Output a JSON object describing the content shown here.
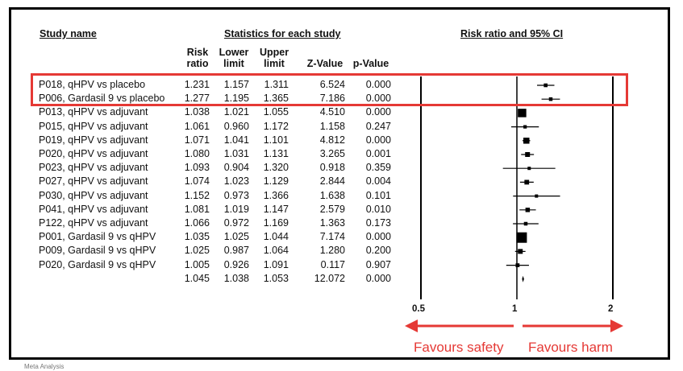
{
  "headers": {
    "study_name": "Study name",
    "statistics": "Statistics for each study",
    "plot_title": "Risk ratio and 95% CI"
  },
  "columns": [
    {
      "line1": "Risk",
      "line2": "ratio"
    },
    {
      "line1": "Lower",
      "line2": "limit"
    },
    {
      "line1": "Upper",
      "line2": "limit"
    },
    {
      "line1": "",
      "line2": "Z-Value"
    },
    {
      "line1": "",
      "line2": "p-Value"
    }
  ],
  "axis_labels": [
    "0.5",
    "1",
    "2"
  ],
  "favours_left": "Favours safety",
  "favours_right": "Favours harm",
  "footnote": "Meta Analysis",
  "colors": {
    "highlight": "#e53935",
    "text": "#111111"
  },
  "chart_data": {
    "type": "forest",
    "x_scale": "log",
    "xlim": [
      0.5,
      2
    ],
    "reference_line": 1,
    "rows": [
      {
        "study": "P018, qHPV vs placebo",
        "rr": "1.231",
        "lower": "1.157",
        "upper": "1.311",
        "z": "6.524",
        "p": "0.000",
        "weight": 0.16,
        "highlight": true
      },
      {
        "study": "P006, Gardasil 9 vs placebo",
        "rr": "1.277",
        "lower": "1.195",
        "upper": "1.365",
        "z": "7.186",
        "p": "0.000",
        "weight": 0.15,
        "highlight": true
      },
      {
        "study": "P013, qHPV vs adjuvant",
        "rr": "1.038",
        "lower": "1.021",
        "upper": "1.055",
        "z": "4.510",
        "p": "0.000",
        "weight": 0.75
      },
      {
        "study": "P015, qHPV vs adjuvant",
        "rr": "1.061",
        "lower": "0.960",
        "upper": "1.172",
        "z": "1.158",
        "p": "0.247",
        "weight": 0.12
      },
      {
        "study": "P019, qHPV vs adjuvant",
        "rr": "1.071",
        "lower": "1.041",
        "upper": "1.101",
        "z": "4.812",
        "p": "0.000",
        "weight": 0.45
      },
      {
        "study": "P020, qHPV vs adjuvant",
        "rr": "1.080",
        "lower": "1.031",
        "upper": "1.131",
        "z": "3.265",
        "p": "0.001",
        "weight": 0.3
      },
      {
        "study": "P023, qHPV vs adjuvant",
        "rr": "1.093",
        "lower": "0.904",
        "upper": "1.320",
        "z": "0.918",
        "p": "0.359",
        "weight": 0.1
      },
      {
        "study": "P027, qHPV vs adjuvant",
        "rr": "1.074",
        "lower": "1.023",
        "upper": "1.129",
        "z": "2.844",
        "p": "0.004",
        "weight": 0.28
      },
      {
        "study": "P030, qHPV vs adjuvant",
        "rr": "1.152",
        "lower": "0.973",
        "upper": "1.366",
        "z": "1.638",
        "p": "0.101",
        "weight": 0.1
      },
      {
        "study": "P041, qHPV vs adjuvant",
        "rr": "1.081",
        "lower": "1.019",
        "upper": "1.147",
        "z": "2.579",
        "p": "0.010",
        "weight": 0.25
      },
      {
        "study": "P122, qHPV vs adjuvant",
        "rr": "1.066",
        "lower": "0.972",
        "upper": "1.169",
        "z": "1.363",
        "p": "0.173",
        "weight": 0.15
      },
      {
        "study": "P001, Gardasil 9 vs qHPV",
        "rr": "1.035",
        "lower": "1.025",
        "upper": "1.044",
        "z": "7.174",
        "p": "0.000",
        "weight": 1.0
      },
      {
        "study": "P009, Gardasil 9 vs qHPV",
        "rr": "1.025",
        "lower": "0.987",
        "upper": "1.064",
        "z": "1.280",
        "p": "0.200",
        "weight": 0.3
      },
      {
        "study": "P020, Gardasil 9 vs qHPV",
        "rr": "1.005",
        "lower": "0.926",
        "upper": "1.091",
        "z": "0.117",
        "p": "0.907",
        "weight": 0.18
      }
    ],
    "summary": {
      "rr": "1.045",
      "lower": "1.038",
      "upper": "1.053",
      "z": "12.072",
      "p": "0.000"
    }
  }
}
